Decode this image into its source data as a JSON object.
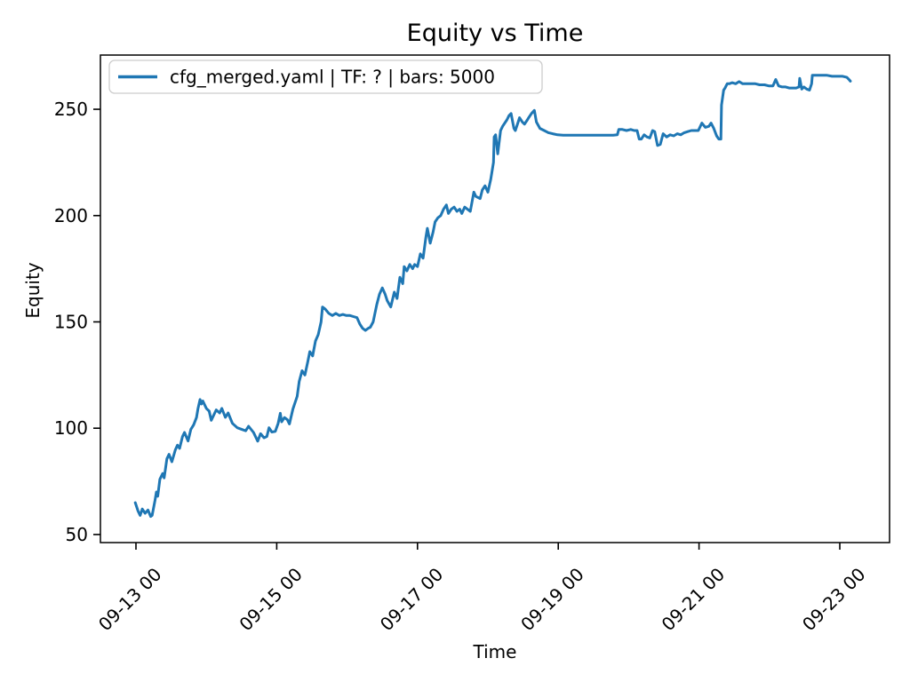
{
  "chart_data": {
    "type": "line",
    "title": "Equity vs Time",
    "xlabel": "Time",
    "ylabel": "Equity",
    "grid": false,
    "legend_position": "upper left",
    "x_unit": "days since 09-13 00:00",
    "xlim": [
      -0.505,
      10.707
    ],
    "ylim": [
      46.2,
      275.5
    ],
    "x_ticks": [
      {
        "day": 0,
        "label": "09-13 00"
      },
      {
        "day": 2,
        "label": "09-15 00"
      },
      {
        "day": 4,
        "label": "09-17 00"
      },
      {
        "day": 6,
        "label": "09-19 00"
      },
      {
        "day": 8,
        "label": "09-21 00"
      },
      {
        "day": 10,
        "label": "09-23 00"
      }
    ],
    "y_ticks": [
      50,
      100,
      150,
      200,
      250
    ],
    "series": [
      {
        "name": "cfg_merged.yaml | TF: ? | bars: 5000",
        "color": "#1f77b4",
        "points": [
          [
            -0.01,
            65
          ],
          [
            0.03,
            61
          ],
          [
            0.06,
            59
          ],
          [
            0.09,
            62
          ],
          [
            0.13,
            60
          ],
          [
            0.17,
            61.5
          ],
          [
            0.21,
            58.5
          ],
          [
            0.23,
            59
          ],
          [
            0.27,
            66
          ],
          [
            0.29,
            70
          ],
          [
            0.31,
            68
          ],
          [
            0.34,
            76
          ],
          [
            0.38,
            78.7
          ],
          [
            0.4,
            76.6
          ],
          [
            0.44,
            85.6
          ],
          [
            0.47,
            87.7
          ],
          [
            0.51,
            84.2
          ],
          [
            0.56,
            89.8
          ],
          [
            0.59,
            92
          ],
          [
            0.62,
            90.5
          ],
          [
            0.66,
            96
          ],
          [
            0.69,
            98
          ],
          [
            0.74,
            94
          ],
          [
            0.78,
            99.5
          ],
          [
            0.82,
            101.6
          ],
          [
            0.86,
            105
          ],
          [
            0.88,
            109
          ],
          [
            0.91,
            113.5
          ],
          [
            0.93,
            111.4
          ],
          [
            0.95,
            112.8
          ],
          [
            1.0,
            109.3
          ],
          [
            1.04,
            108
          ],
          [
            1.07,
            103.7
          ],
          [
            1.14,
            108.6
          ],
          [
            1.19,
            107.2
          ],
          [
            1.22,
            109.3
          ],
          [
            1.27,
            105.1
          ],
          [
            1.31,
            107.2
          ],
          [
            1.37,
            102.3
          ],
          [
            1.44,
            100.2
          ],
          [
            1.5,
            99.5
          ],
          [
            1.56,
            98.8
          ],
          [
            1.6,
            100.9
          ],
          [
            1.67,
            98
          ],
          [
            1.73,
            93.9
          ],
          [
            1.77,
            97.4
          ],
          [
            1.82,
            95.5
          ],
          [
            1.86,
            96.1
          ],
          [
            1.89,
            100.2
          ],
          [
            1.93,
            98.2
          ],
          [
            1.98,
            98.5
          ],
          [
            2.02,
            102.3
          ],
          [
            2.05,
            107
          ],
          [
            2.07,
            103
          ],
          [
            2.11,
            105
          ],
          [
            2.15,
            104
          ],
          [
            2.18,
            102
          ],
          [
            2.23,
            109
          ],
          [
            2.29,
            115
          ],
          [
            2.32,
            122
          ],
          [
            2.36,
            127
          ],
          [
            2.4,
            125
          ],
          [
            2.44,
            131
          ],
          [
            2.47,
            136
          ],
          [
            2.51,
            134
          ],
          [
            2.55,
            141
          ],
          [
            2.59,
            144
          ],
          [
            2.63,
            150
          ],
          [
            2.65,
            157
          ],
          [
            2.69,
            156
          ],
          [
            2.74,
            154
          ],
          [
            2.79,
            153
          ],
          [
            2.84,
            154
          ],
          [
            2.89,
            153
          ],
          [
            2.94,
            153.5
          ],
          [
            2.99,
            153
          ],
          [
            3.04,
            153
          ],
          [
            3.09,
            152.5
          ],
          [
            3.14,
            152
          ],
          [
            3.18,
            149
          ],
          [
            3.22,
            147
          ],
          [
            3.26,
            146
          ],
          [
            3.3,
            147
          ],
          [
            3.33,
            147.5
          ],
          [
            3.37,
            150
          ],
          [
            3.42,
            158
          ],
          [
            3.46,
            163
          ],
          [
            3.5,
            166
          ],
          [
            3.54,
            163
          ],
          [
            3.57,
            160
          ],
          [
            3.62,
            157
          ],
          [
            3.67,
            164
          ],
          [
            3.71,
            161
          ],
          [
            3.75,
            171
          ],
          [
            3.79,
            168
          ],
          [
            3.81,
            176
          ],
          [
            3.85,
            174
          ],
          [
            3.89,
            177
          ],
          [
            3.93,
            175
          ],
          [
            3.96,
            177
          ],
          [
            4.0,
            176
          ],
          [
            4.04,
            182
          ],
          [
            4.08,
            180
          ],
          [
            4.12,
            190
          ],
          [
            4.14,
            194
          ],
          [
            4.18,
            187
          ],
          [
            4.22,
            192
          ],
          [
            4.25,
            197
          ],
          [
            4.29,
            199
          ],
          [
            4.33,
            200
          ],
          [
            4.37,
            203
          ],
          [
            4.41,
            205
          ],
          [
            4.44,
            201
          ],
          [
            4.48,
            203
          ],
          [
            4.52,
            204
          ],
          [
            4.56,
            202
          ],
          [
            4.6,
            203
          ],
          [
            4.63,
            201
          ],
          [
            4.67,
            204
          ],
          [
            4.71,
            203
          ],
          [
            4.75,
            202
          ],
          [
            4.8,
            211
          ],
          [
            4.83,
            209
          ],
          [
            4.89,
            208
          ],
          [
            4.92,
            212
          ],
          [
            4.96,
            214
          ],
          [
            5.0,
            211
          ],
          [
            5.04,
            217
          ],
          [
            5.08,
            225
          ],
          [
            5.09,
            237
          ],
          [
            5.11,
            238
          ],
          [
            5.14,
            229
          ],
          [
            5.18,
            240
          ],
          [
            5.21,
            242
          ],
          [
            5.27,
            245
          ],
          [
            5.3,
            247
          ],
          [
            5.33,
            248
          ],
          [
            5.37,
            241
          ],
          [
            5.39,
            240
          ],
          [
            5.43,
            244
          ],
          [
            5.45,
            246
          ],
          [
            5.49,
            244
          ],
          [
            5.52,
            243
          ],
          [
            5.56,
            245
          ],
          [
            5.58,
            246
          ],
          [
            5.62,
            248
          ],
          [
            5.66,
            249.5
          ],
          [
            5.69,
            244
          ],
          [
            5.74,
            241
          ],
          [
            5.8,
            240
          ],
          [
            5.86,
            239
          ],
          [
            5.92,
            238.5
          ],
          [
            5.99,
            238
          ],
          [
            6.07,
            237.8
          ],
          [
            6.17,
            237.8
          ],
          [
            6.28,
            237.8
          ],
          [
            6.38,
            237.8
          ],
          [
            6.48,
            237.8
          ],
          [
            6.58,
            237.8
          ],
          [
            6.68,
            237.8
          ],
          [
            6.78,
            237.8
          ],
          [
            6.84,
            238
          ],
          [
            6.86,
            240.5
          ],
          [
            6.91,
            240.5
          ],
          [
            6.97,
            240
          ],
          [
            7.03,
            240.5
          ],
          [
            7.08,
            240
          ],
          [
            7.12,
            240
          ],
          [
            7.15,
            236
          ],
          [
            7.18,
            236
          ],
          [
            7.22,
            238
          ],
          [
            7.26,
            237
          ],
          [
            7.3,
            236.5
          ],
          [
            7.34,
            240
          ],
          [
            7.37,
            239.5
          ],
          [
            7.41,
            233
          ],
          [
            7.45,
            233.5
          ],
          [
            7.49,
            238.5
          ],
          [
            7.54,
            237
          ],
          [
            7.59,
            238
          ],
          [
            7.64,
            237.5
          ],
          [
            7.69,
            238.5
          ],
          [
            7.74,
            238
          ],
          [
            7.79,
            239
          ],
          [
            7.84,
            239.5
          ],
          [
            7.89,
            240
          ],
          [
            7.94,
            240
          ],
          [
            7.99,
            240
          ],
          [
            8.04,
            243.5
          ],
          [
            8.09,
            241.5
          ],
          [
            8.14,
            242
          ],
          [
            8.17,
            243.5
          ],
          [
            8.21,
            241
          ],
          [
            8.25,
            237.5
          ],
          [
            8.28,
            236
          ],
          [
            8.31,
            236
          ],
          [
            8.32,
            252
          ],
          [
            8.35,
            259
          ],
          [
            8.37,
            260
          ],
          [
            8.4,
            262
          ],
          [
            8.43,
            262
          ],
          [
            8.47,
            262.5
          ],
          [
            8.52,
            262
          ],
          [
            8.57,
            263
          ],
          [
            8.62,
            262
          ],
          [
            8.67,
            262
          ],
          [
            8.74,
            262
          ],
          [
            8.8,
            262
          ],
          [
            8.86,
            261.5
          ],
          [
            8.93,
            261.5
          ],
          [
            8.99,
            261
          ],
          [
            9.05,
            261
          ],
          [
            9.09,
            264
          ],
          [
            9.13,
            261
          ],
          [
            9.18,
            260.5
          ],
          [
            9.23,
            260.5
          ],
          [
            9.28,
            260
          ],
          [
            9.33,
            260
          ],
          [
            9.38,
            260
          ],
          [
            9.42,
            260.5
          ],
          [
            9.43,
            264.5
          ],
          [
            9.46,
            259.5
          ],
          [
            9.49,
            260.5
          ],
          [
            9.53,
            259.5
          ],
          [
            9.57,
            259
          ],
          [
            9.6,
            262
          ],
          [
            9.61,
            266
          ],
          [
            9.66,
            266
          ],
          [
            9.73,
            266
          ],
          [
            9.81,
            266
          ],
          [
            9.89,
            265.5
          ],
          [
            9.96,
            265.5
          ],
          [
            10.04,
            265.5
          ],
          [
            10.1,
            265
          ],
          [
            10.13,
            264
          ],
          [
            10.15,
            263.2
          ]
        ]
      }
    ]
  },
  "style": {
    "line_color": "#1f77b4",
    "spine_color": "#000000",
    "legend_border_color": "#cccccc",
    "background_color": "#ffffff"
  }
}
